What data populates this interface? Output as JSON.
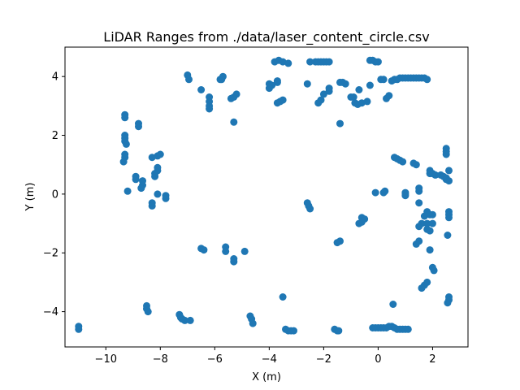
{
  "chart_data": {
    "type": "scatter",
    "title": "LiDAR Ranges from ./data/laser_content_circle.csv",
    "xlabel": "X (m)",
    "ylabel": "Y (m)",
    "xlim": [
      -11.5,
      3.3
    ],
    "ylim": [
      -5.2,
      5.0
    ],
    "xticks": [
      -10,
      -8,
      -6,
      -4,
      -2,
      0,
      2
    ],
    "yticks": [
      -4,
      -2,
      0,
      2,
      4
    ],
    "xtick_labels": [
      "−10",
      "−8",
      "−6",
      "−4",
      "−2",
      "0",
      "2"
    ],
    "ytick_labels": [
      "−4",
      "−2",
      "0",
      "2",
      "4"
    ],
    "grid": false,
    "color": "#1f77b4",
    "points": [
      [
        -11.0,
        -4.5
      ],
      [
        -11.0,
        -4.6
      ],
      [
        -9.3,
        2.7
      ],
      [
        -9.3,
        2.6
      ],
      [
        -9.3,
        2.0
      ],
      [
        -9.3,
        1.9
      ],
      [
        -9.3,
        1.8
      ],
      [
        -9.25,
        1.7
      ],
      [
        -9.3,
        1.35
      ],
      [
        -9.3,
        1.25
      ],
      [
        -9.35,
        1.1
      ],
      [
        -9.2,
        0.1
      ],
      [
        -8.8,
        2.4
      ],
      [
        -8.8,
        2.3
      ],
      [
        -8.9,
        0.6
      ],
      [
        -8.9,
        0.5
      ],
      [
        -8.65,
        0.45
      ],
      [
        -8.65,
        0.3
      ],
      [
        -8.7,
        0.2
      ],
      [
        -8.3,
        1.25
      ],
      [
        -8.1,
        1.3
      ],
      [
        -8.0,
        1.35
      ],
      [
        -8.1,
        0.9
      ],
      [
        -8.1,
        0.8
      ],
      [
        -8.2,
        0.7
      ],
      [
        -8.2,
        0.6
      ],
      [
        -8.3,
        -0.3
      ],
      [
        -8.3,
        -0.4
      ],
      [
        -8.1,
        0.0
      ],
      [
        -7.8,
        -0.05
      ],
      [
        -7.8,
        -0.15
      ],
      [
        -7.0,
        4.05
      ],
      [
        -6.95,
        3.9
      ],
      [
        -6.5,
        3.55
      ],
      [
        -6.2,
        3.3
      ],
      [
        -6.2,
        3.15
      ],
      [
        -6.2,
        3.0
      ],
      [
        -6.2,
        2.9
      ],
      [
        -5.8,
        3.9
      ],
      [
        -5.7,
        4.0
      ],
      [
        -5.75,
        3.9
      ],
      [
        -5.4,
        3.25
      ],
      [
        -5.3,
        3.3
      ],
      [
        -5.2,
        3.4
      ],
      [
        -5.3,
        2.45
      ],
      [
        -4.0,
        3.75
      ],
      [
        -3.9,
        3.7
      ],
      [
        -4.0,
        3.6
      ],
      [
        -3.7,
        3.85
      ],
      [
        -3.7,
        3.8
      ],
      [
        -3.7,
        3.1
      ],
      [
        -3.6,
        3.15
      ],
      [
        -3.5,
        3.2
      ],
      [
        -3.8,
        4.5
      ],
      [
        -3.65,
        4.55
      ],
      [
        -3.5,
        4.5
      ],
      [
        -3.3,
        4.45
      ],
      [
        -2.5,
        4.5
      ],
      [
        -2.3,
        4.5
      ],
      [
        -2.2,
        4.5
      ],
      [
        -2.1,
        4.5
      ],
      [
        -2.0,
        4.5
      ],
      [
        -1.9,
        4.5
      ],
      [
        -1.8,
        4.5
      ],
      [
        -2.6,
        3.75
      ],
      [
        -2.2,
        3.1
      ],
      [
        -2.1,
        3.2
      ],
      [
        -2.0,
        3.4
      ],
      [
        -1.8,
        3.5
      ],
      [
        -1.8,
        3.6
      ],
      [
        -1.4,
        3.8
      ],
      [
        -1.3,
        3.8
      ],
      [
        -1.2,
        3.75
      ],
      [
        -1.0,
        3.3
      ],
      [
        -0.9,
        3.3
      ],
      [
        -0.85,
        3.1
      ],
      [
        -0.75,
        3.05
      ],
      [
        -0.6,
        3.1
      ],
      [
        -0.4,
        3.15
      ],
      [
        -0.7,
        3.55
      ],
      [
        -0.3,
        3.7
      ],
      [
        -1.4,
        2.4
      ],
      [
        -0.3,
        4.55
      ],
      [
        -0.2,
        4.55
      ],
      [
        -0.1,
        4.5
      ],
      [
        0.0,
        4.5
      ],
      [
        0.1,
        3.9
      ],
      [
        0.2,
        3.9
      ],
      [
        0.3,
        3.25
      ],
      [
        0.4,
        3.35
      ],
      [
        0.5,
        3.85
      ],
      [
        0.6,
        3.9
      ],
      [
        0.7,
        3.9
      ],
      [
        0.8,
        3.95
      ],
      [
        0.9,
        3.95
      ],
      [
        1.0,
        3.95
      ],
      [
        1.1,
        3.95
      ],
      [
        1.2,
        3.95
      ],
      [
        1.3,
        3.95
      ],
      [
        1.4,
        3.95
      ],
      [
        1.5,
        3.95
      ],
      [
        1.6,
        3.95
      ],
      [
        1.7,
        3.95
      ],
      [
        1.8,
        3.9
      ],
      [
        0.6,
        1.25
      ],
      [
        0.7,
        1.2
      ],
      [
        0.8,
        1.15
      ],
      [
        0.9,
        1.1
      ],
      [
        1.3,
        1.05
      ],
      [
        1.4,
        1.0
      ],
      [
        1.9,
        0.8
      ],
      [
        1.9,
        0.7
      ],
      [
        2.0,
        0.7
      ],
      [
        2.1,
        0.65
      ],
      [
        2.3,
        0.65
      ],
      [
        2.4,
        0.6
      ],
      [
        2.5,
        0.55
      ],
      [
        2.5,
        0.5
      ],
      [
        2.6,
        0.45
      ],
      [
        2.6,
        0.8
      ],
      [
        2.5,
        1.55
      ],
      [
        2.5,
        1.45
      ],
      [
        2.5,
        1.35
      ],
      [
        -0.1,
        0.05
      ],
      [
        0.2,
        0.05
      ],
      [
        0.25,
        0.1
      ],
      [
        1.0,
        0.05
      ],
      [
        1.0,
        0.0
      ],
      [
        1.0,
        -0.05
      ],
      [
        1.5,
        0.2
      ],
      [
        1.5,
        0.1
      ],
      [
        1.5,
        -0.3
      ],
      [
        1.8,
        -0.6
      ],
      [
        1.9,
        -0.7
      ],
      [
        1.7,
        -0.75
      ],
      [
        1.6,
        -1.0
      ],
      [
        1.5,
        -1.1
      ],
      [
        1.8,
        -1.0
      ],
      [
        1.8,
        -1.2
      ],
      [
        1.9,
        -1.25
      ],
      [
        2.0,
        -0.7
      ],
      [
        2.0,
        -1.0
      ],
      [
        2.6,
        -0.6
      ],
      [
        2.6,
        -0.7
      ],
      [
        2.6,
        -0.8
      ],
      [
        2.55,
        -1.4
      ],
      [
        1.5,
        -1.6
      ],
      [
        1.4,
        -1.7
      ],
      [
        1.9,
        -1.9
      ],
      [
        2.0,
        -2.5
      ],
      [
        2.05,
        -2.6
      ],
      [
        1.8,
        -3.0
      ],
      [
        1.7,
        -3.1
      ],
      [
        1.6,
        -3.2
      ],
      [
        2.6,
        -3.5
      ],
      [
        2.6,
        -3.6
      ],
      [
        2.55,
        -3.7
      ],
      [
        -0.6,
        -0.8
      ],
      [
        -0.5,
        -0.85
      ],
      [
        -0.7,
        -1.0
      ],
      [
        -0.6,
        -0.95
      ],
      [
        -2.6,
        -0.3
      ],
      [
        -2.55,
        -0.4
      ],
      [
        -2.5,
        -0.5
      ],
      [
        -1.4,
        -1.6
      ],
      [
        -1.5,
        -1.65
      ],
      [
        -6.5,
        -1.85
      ],
      [
        -6.4,
        -1.9
      ],
      [
        -5.6,
        -1.8
      ],
      [
        -5.6,
        -1.95
      ],
      [
        -5.3,
        -2.2
      ],
      [
        -5.3,
        -2.3
      ],
      [
        -4.9,
        -1.95
      ],
      [
        -7.1,
        -4.3
      ],
      [
        -7.2,
        -4.25
      ],
      [
        -7.3,
        -4.1
      ],
      [
        -7.25,
        -4.2
      ],
      [
        -6.9,
        -4.3
      ],
      [
        -8.5,
        -3.8
      ],
      [
        -8.5,
        -3.9
      ],
      [
        -8.45,
        -4.0
      ],
      [
        -4.7,
        -4.15
      ],
      [
        -4.65,
        -4.25
      ],
      [
        -4.6,
        -4.4
      ],
      [
        -3.5,
        -3.5
      ],
      [
        -3.4,
        -4.6
      ],
      [
        -3.3,
        -4.65
      ],
      [
        -3.2,
        -4.65
      ],
      [
        -3.1,
        -4.65
      ],
      [
        -1.6,
        -4.6
      ],
      [
        -1.5,
        -4.65
      ],
      [
        -1.45,
        -4.65
      ],
      [
        -0.2,
        -4.55
      ],
      [
        -0.1,
        -4.55
      ],
      [
        0.0,
        -4.55
      ],
      [
        0.1,
        -4.55
      ],
      [
        0.2,
        -4.55
      ],
      [
        0.3,
        -4.55
      ],
      [
        0.4,
        -4.5
      ],
      [
        0.5,
        -4.5
      ],
      [
        0.6,
        -4.55
      ],
      [
        0.7,
        -4.6
      ],
      [
        0.8,
        -4.6
      ],
      [
        0.9,
        -4.6
      ],
      [
        1.0,
        -4.6
      ],
      [
        1.1,
        -4.6
      ],
      [
        0.55,
        -3.75
      ]
    ]
  }
}
